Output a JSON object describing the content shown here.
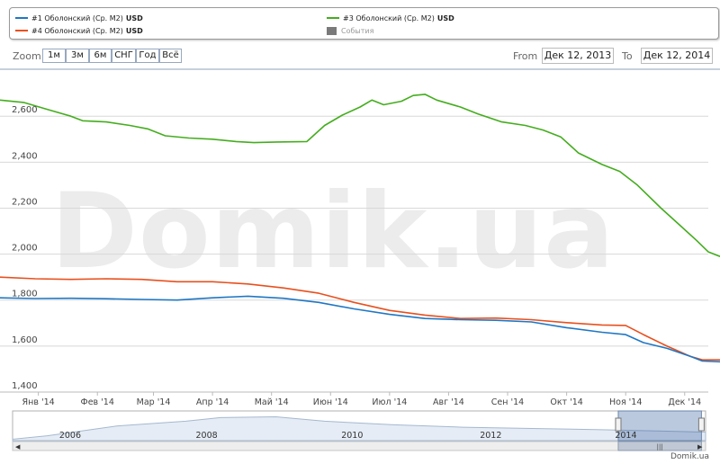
{
  "legend": {
    "items": [
      {
        "label": "#1 Оболонский (Ср. М2)",
        "unit": "USD",
        "color": "#1f77c4"
      },
      {
        "label": "#4 Оболонский (Ср. М2)",
        "unit": "USD",
        "color": "#e8501e"
      },
      {
        "label": "#3 Оболонский (Ср. М2)",
        "unit": "USD",
        "color": "#44ad1e"
      },
      {
        "label": "События",
        "unit": "",
        "color": "#7a7a7a"
      }
    ]
  },
  "range_selector": {
    "zoom_label": "Zoom",
    "buttons": [
      "1м",
      "3м",
      "6м",
      "СНГ",
      "Год",
      "Всё"
    ],
    "from_label": "From",
    "from_value": "Дек 12, 2013",
    "to_label": "To",
    "to_value": "Дек 12, 2014"
  },
  "watermark": "Domik.ua",
  "credit": "Domik.ua",
  "chart_data": {
    "type": "line",
    "x_unit": "month index (0 = Дек 12, 2013, 12 = Дек 12, 2014)",
    "x_ticks": [
      {
        "label": "Янв '14",
        "x": 0.65
      },
      {
        "label": "Фев '14",
        "x": 1.65
      },
      {
        "label": "Мар '14",
        "x": 2.6
      },
      {
        "label": "Апр '14",
        "x": 3.6
      },
      {
        "label": "Май '14",
        "x": 4.6
      },
      {
        "label": "Июн '14",
        "x": 5.6
      },
      {
        "label": "Июл '14",
        "x": 6.6
      },
      {
        "label": "Авг '14",
        "x": 7.6
      },
      {
        "label": "Сен '14",
        "x": 8.6
      },
      {
        "label": "Окт '14",
        "x": 9.6
      },
      {
        "label": "Ноя '14",
        "x": 10.6
      },
      {
        "label": "Дек '14",
        "x": 11.6
      }
    ],
    "y_ticks": [
      1400,
      1600,
      1800,
      2000,
      2200,
      2400,
      2600
    ],
    "y_tick_labels": [
      "1,400",
      "1,600",
      "1,800",
      "2,000",
      "2,200",
      "2,400",
      "2,600"
    ],
    "ylim": [
      1400,
      2730
    ],
    "xlim": [
      0,
      12
    ],
    "grid": true,
    "series": [
      {
        "name": "#3 Оболонский (Ср. М2)",
        "color": "#44ad1e",
        "points": [
          [
            0,
            2670
          ],
          [
            0.4,
            2660
          ],
          [
            0.8,
            2630
          ],
          [
            1.2,
            2600
          ],
          [
            1.4,
            2580
          ],
          [
            1.8,
            2575
          ],
          [
            2.2,
            2560
          ],
          [
            2.5,
            2545
          ],
          [
            2.8,
            2515
          ],
          [
            3.2,
            2505
          ],
          [
            3.6,
            2500
          ],
          [
            4.0,
            2490
          ],
          [
            4.3,
            2485
          ],
          [
            4.7,
            2488
          ],
          [
            5.2,
            2490
          ],
          [
            5.5,
            2560
          ],
          [
            5.8,
            2605
          ],
          [
            6.1,
            2640
          ],
          [
            6.3,
            2670
          ],
          [
            6.5,
            2650
          ],
          [
            6.8,
            2665
          ],
          [
            7.0,
            2690
          ],
          [
            7.2,
            2695
          ],
          [
            7.4,
            2670
          ],
          [
            7.8,
            2640
          ],
          [
            8.1,
            2610
          ],
          [
            8.5,
            2575
          ],
          [
            8.9,
            2560
          ],
          [
            9.2,
            2540
          ],
          [
            9.5,
            2510
          ],
          [
            9.8,
            2440
          ],
          [
            10.2,
            2390
          ],
          [
            10.5,
            2360
          ],
          [
            10.8,
            2300
          ],
          [
            11.2,
            2200
          ],
          [
            11.5,
            2130
          ],
          [
            11.8,
            2060
          ],
          [
            12.0,
            2010
          ],
          [
            12.2,
            1990
          ]
        ]
      },
      {
        "name": "#4 Оболонский (Ср. М2)",
        "color": "#e8501e",
        "points": [
          [
            0,
            1900
          ],
          [
            0.6,
            1893
          ],
          [
            1.2,
            1890
          ],
          [
            1.8,
            1893
          ],
          [
            2.4,
            1890
          ],
          [
            3.0,
            1880
          ],
          [
            3.6,
            1880
          ],
          [
            4.2,
            1870
          ],
          [
            4.8,
            1853
          ],
          [
            5.4,
            1830
          ],
          [
            6.0,
            1790
          ],
          [
            6.6,
            1755
          ],
          [
            7.2,
            1735
          ],
          [
            7.8,
            1720
          ],
          [
            8.4,
            1722
          ],
          [
            9.0,
            1715
          ],
          [
            9.6,
            1702
          ],
          [
            10.2,
            1692
          ],
          [
            10.6,
            1690
          ],
          [
            10.9,
            1650
          ],
          [
            11.3,
            1600
          ],
          [
            11.7,
            1555
          ],
          [
            11.9,
            1540
          ],
          [
            12.2,
            1540
          ]
        ]
      },
      {
        "name": "#1 Оболонский (Ср. М2)",
        "color": "#1f77c4",
        "points": [
          [
            0,
            1810
          ],
          [
            0.6,
            1807
          ],
          [
            1.2,
            1808
          ],
          [
            1.8,
            1806
          ],
          [
            2.4,
            1803
          ],
          [
            3.0,
            1800
          ],
          [
            3.6,
            1810
          ],
          [
            4.2,
            1817
          ],
          [
            4.8,
            1808
          ],
          [
            5.4,
            1790
          ],
          [
            6.0,
            1762
          ],
          [
            6.6,
            1738
          ],
          [
            7.2,
            1720
          ],
          [
            7.8,
            1715
          ],
          [
            8.4,
            1712
          ],
          [
            9.0,
            1705
          ],
          [
            9.6,
            1680
          ],
          [
            10.2,
            1660
          ],
          [
            10.6,
            1650
          ],
          [
            10.9,
            1615
          ],
          [
            11.3,
            1590
          ],
          [
            11.7,
            1555
          ],
          [
            11.9,
            1535
          ],
          [
            12.2,
            1532
          ]
        ]
      }
    ]
  },
  "navigator": {
    "year_labels": [
      {
        "label": "2006",
        "x": 0.083
      },
      {
        "label": "2008",
        "x": 0.28
      },
      {
        "label": "2010",
        "x": 0.49
      },
      {
        "label": "2012",
        "x": 0.69
      },
      {
        "label": "2014",
        "x": 0.885
      }
    ],
    "profile": [
      [
        0,
        0.06
      ],
      [
        0.05,
        0.2
      ],
      [
        0.15,
        0.6
      ],
      [
        0.25,
        0.8
      ],
      [
        0.3,
        0.95
      ],
      [
        0.38,
        0.98
      ],
      [
        0.45,
        0.8
      ],
      [
        0.55,
        0.65
      ],
      [
        0.65,
        0.55
      ],
      [
        0.75,
        0.5
      ],
      [
        0.85,
        0.45
      ],
      [
        0.93,
        0.4
      ],
      [
        1.0,
        0.35
      ]
    ],
    "selection_start": 0.874,
    "selection_end": 0.994
  }
}
